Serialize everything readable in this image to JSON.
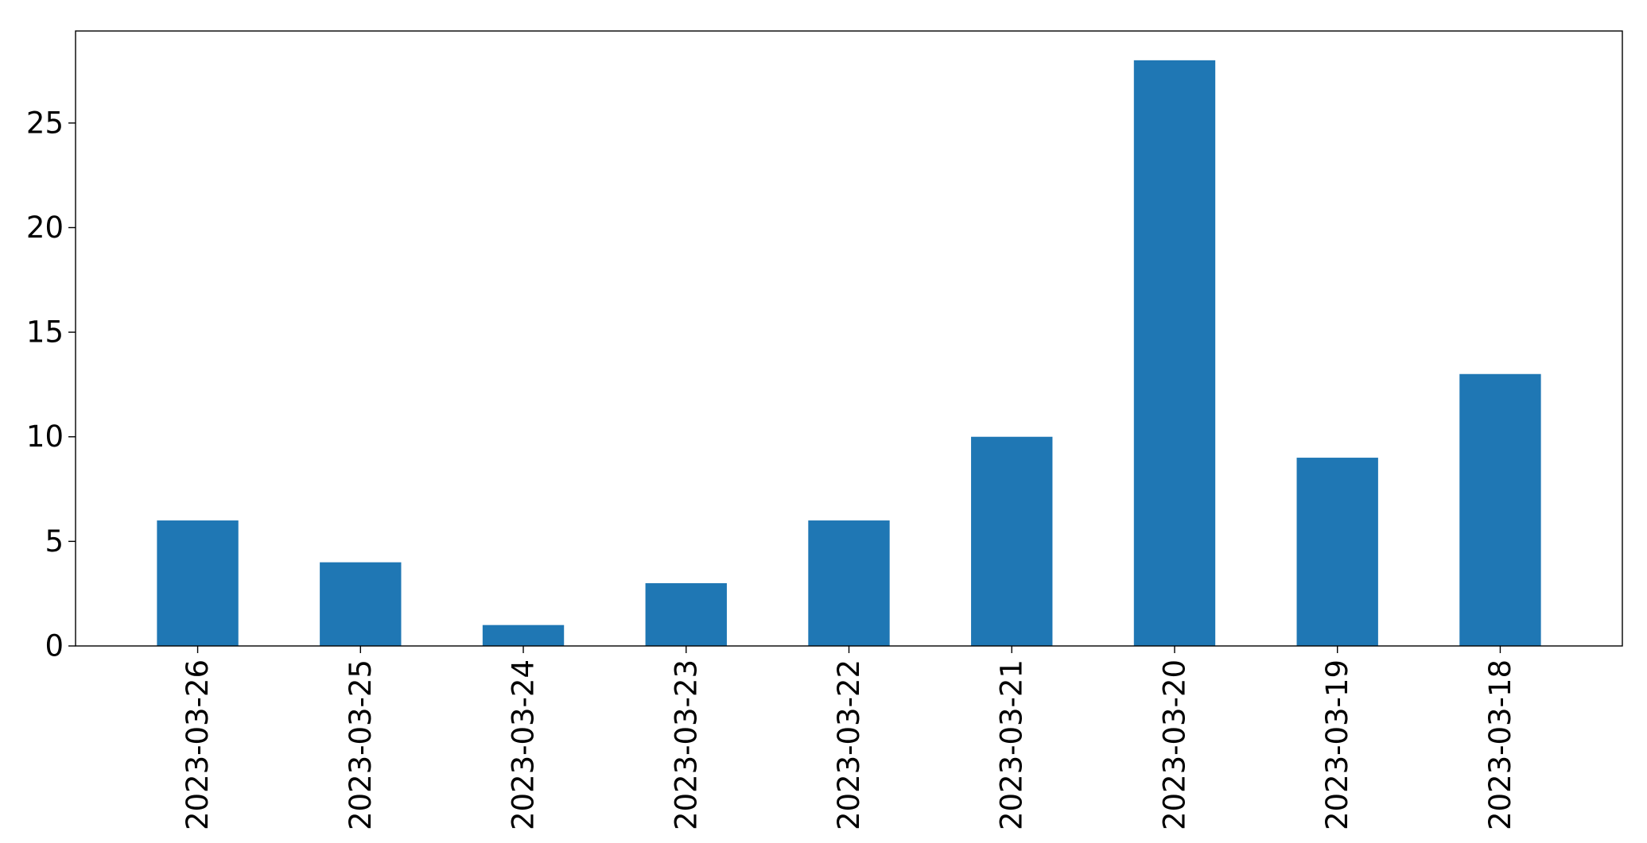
{
  "chart_data": {
    "type": "bar",
    "title": "",
    "xlabel": "",
    "ylabel": "",
    "categories": [
      "2023-03-26",
      "2023-03-25",
      "2023-03-24",
      "2023-03-23",
      "2023-03-22",
      "2023-03-21",
      "2023-03-20",
      "2023-03-19",
      "2023-03-18"
    ],
    "values": [
      6,
      4,
      1,
      3,
      6,
      10,
      28,
      9,
      13
    ],
    "ylim": [
      0,
      29.4
    ],
    "yticks": [
      0,
      5,
      10,
      15,
      20,
      25
    ],
    "grid": false,
    "legend": null,
    "bar_color": "#1f77b4"
  }
}
